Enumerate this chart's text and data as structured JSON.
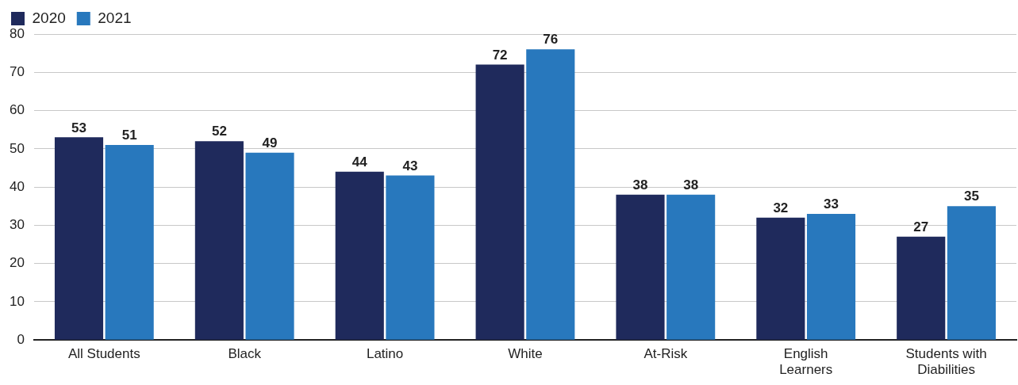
{
  "chart_data": {
    "type": "bar",
    "categories": [
      "All Students",
      "Black",
      "Latino",
      "White",
      "At-Risk",
      "English Learners",
      "Students with Diabilities"
    ],
    "series": [
      {
        "name": "2020",
        "color": "#1f2a5c",
        "values": [
          53,
          52,
          44,
          72,
          38,
          32,
          27
        ]
      },
      {
        "name": "2021",
        "color": "#2878bd",
        "values": [
          51,
          49,
          43,
          76,
          38,
          33,
          35
        ]
      }
    ],
    "ylim": [
      0,
      80
    ],
    "yticks": [
      0,
      10,
      20,
      30,
      40,
      50,
      60,
      70,
      80
    ],
    "grid": "y",
    "legend": "top left",
    "data_labels": true
  }
}
